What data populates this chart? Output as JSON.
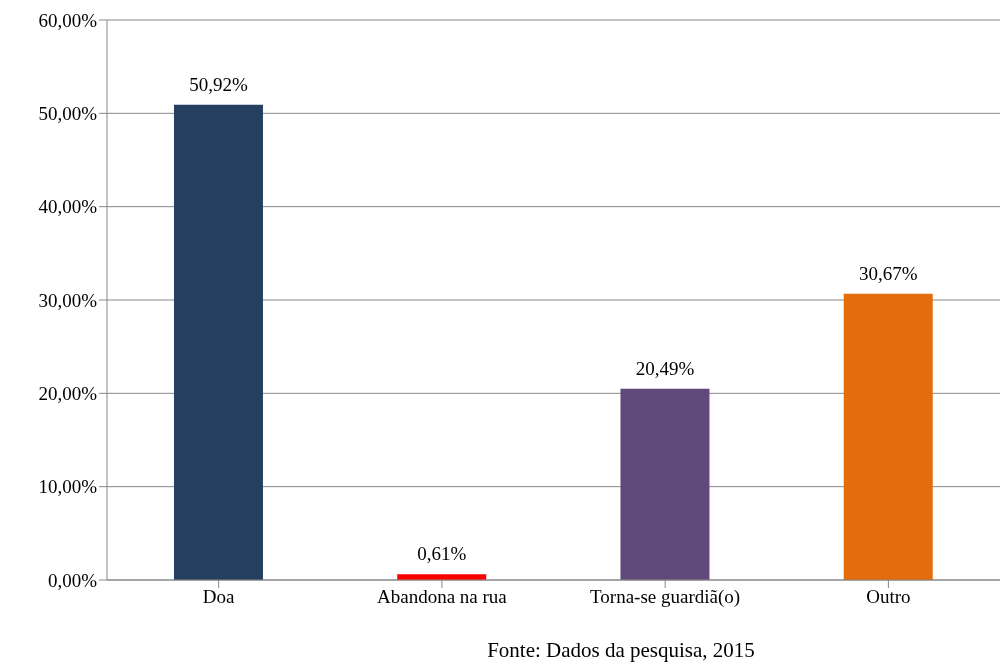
{
  "chart_data": {
    "type": "bar",
    "categories": [
      "Doa",
      "Abandona na rua",
      "Torna-se guardiã(o)",
      "Outro"
    ],
    "values": [
      50.92,
      0.61,
      20.49,
      30.67
    ],
    "colors": [
      "#243f60",
      "#ff0000",
      "#604a7b",
      "#e46c0a"
    ],
    "value_labels": [
      "50,92%",
      "0,61%",
      "20,49%",
      "30,67%"
    ],
    "ylim": [
      0,
      60
    ],
    "yticks": [
      {
        "value": 0,
        "label": "0,00%"
      },
      {
        "value": 10,
        "label": "10,00%"
      },
      {
        "value": 20,
        "label": "20,00%"
      },
      {
        "value": 30,
        "label": "30,00%"
      },
      {
        "value": 40,
        "label": "40,00%"
      },
      {
        "value": 50,
        "label": "50,00%"
      },
      {
        "value": 60,
        "label": "60,00%"
      }
    ],
    "grid": "y",
    "annotations": [
      "Fonte: Dados da pesquisa, 2015"
    ]
  }
}
